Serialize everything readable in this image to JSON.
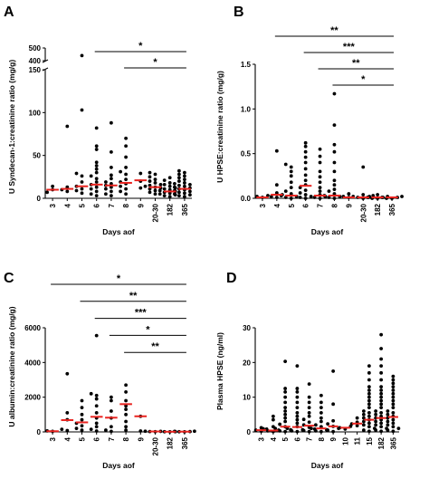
{
  "chart_data": [
    {
      "type": "scatter",
      "panel_label": "A",
      "xlabel": "Days aof",
      "ylabel": "U Syndecan-1:creatinine ratio (mg/g)",
      "categories": [
        "3",
        "4",
        "5",
        "6",
        "7",
        "8",
        "9",
        "20-30",
        "182",
        "365"
      ],
      "y_axis_broken": true,
      "ylim_lower": [
        0,
        150
      ],
      "ylim_upper": [
        400,
        500
      ],
      "yticks": [
        0,
        50,
        100,
        150,
        400,
        500
      ],
      "median_color": "#e8231f",
      "point_color": "#000000",
      "points": [
        [
          10,
          14,
          7
        ],
        [
          8,
          10,
          13,
          84
        ],
        [
          6,
          9,
          11,
          14,
          19,
          26,
          29,
          103,
          440
        ],
        [
          3,
          5,
          8,
          11,
          13,
          16,
          19,
          23,
          26,
          30,
          34,
          38,
          42,
          57,
          61,
          82
        ],
        [
          3,
          5,
          8,
          11,
          13,
          15,
          17,
          19,
          23,
          27,
          36,
          54,
          88
        ],
        [
          5,
          8,
          11,
          14,
          17,
          19,
          22,
          28,
          31,
          36,
          48,
          61,
          70
        ],
        [
          12,
          20,
          29
        ],
        [
          5,
          7,
          9,
          11,
          12,
          13,
          14,
          15,
          16,
          18,
          20,
          22,
          25,
          28,
          30
        ],
        [
          2,
          3,
          4,
          5,
          6,
          7,
          8,
          9,
          10,
          11,
          12,
          14,
          16,
          18,
          21,
          24
        ],
        [
          2,
          3,
          4,
          5,
          6,
          7,
          8,
          9,
          10,
          11,
          12,
          13,
          14,
          15,
          16,
          17,
          18,
          20,
          22,
          24,
          26,
          28,
          30,
          32
        ]
      ],
      "medians": [
        10,
        11,
        14,
        16,
        15,
        18,
        21,
        13,
        8,
        11
      ],
      "significance": [
        {
          "label": "*",
          "from": "6",
          "to": "365"
        },
        {
          "label": "*",
          "from": "8",
          "to": "365"
        }
      ]
    },
    {
      "type": "scatter",
      "panel_label": "B",
      "xlabel": "Days aof",
      "ylabel": "U HPSE:creatinine ratio (mg/g)",
      "categories": [
        "3",
        "4",
        "5",
        "6",
        "7",
        "8",
        "9",
        "20-30",
        "182",
        "365"
      ],
      "ylim": [
        0,
        1.5
      ],
      "yticks": [
        0.0,
        0.5,
        1.0,
        1.5
      ],
      "median_color": "#e8231f",
      "point_color": "#000000",
      "points": [
        [
          0.01,
          0.02,
          0.03
        ],
        [
          0.01,
          0.02,
          0.04,
          0.06,
          0.15,
          0.53
        ],
        [
          0.0,
          0.01,
          0.02,
          0.03,
          0.05,
          0.08,
          0.12,
          0.18,
          0.25,
          0.3,
          0.35,
          0.38
        ],
        [
          0.0,
          0.01,
          0.02,
          0.04,
          0.06,
          0.09,
          0.12,
          0.15,
          0.2,
          0.26,
          0.33,
          0.4,
          0.46,
          0.52,
          0.58,
          0.62
        ],
        [
          0.0,
          0.01,
          0.02,
          0.04,
          0.08,
          0.12,
          0.18,
          0.24,
          0.3,
          0.4,
          0.47,
          0.55
        ],
        [
          0.0,
          0.01,
          0.02,
          0.03,
          0.05,
          0.08,
          0.1,
          0.15,
          0.2,
          0.3,
          0.4,
          0.52,
          0.6,
          0.82,
          1.17
        ],
        [
          0.01,
          0.02,
          0.05
        ],
        [
          0.0,
          0.01,
          0.01,
          0.02,
          0.03,
          0.04,
          0.35
        ],
        [
          0.0,
          0.0,
          0.01,
          0.01,
          0.02,
          0.02,
          0.04
        ],
        [
          0.0,
          0.0,
          0.01,
          0.01,
          0.02
        ]
      ],
      "medians": [
        0.01,
        0.04,
        0.03,
        0.14,
        0.03,
        0.03,
        0.01,
        0.01,
        0.01,
        0.01
      ],
      "significance": [
        {
          "label": "**",
          "from": "4",
          "to": "365"
        },
        {
          "label": "***",
          "from": "6",
          "to": "365"
        },
        {
          "label": "**",
          "from": "7",
          "to": "365"
        },
        {
          "label": "*",
          "from": "8",
          "to": "365"
        }
      ]
    },
    {
      "type": "scatter",
      "panel_label": "C",
      "xlabel": "Days aof",
      "ylabel": "U albumin:creatinine ratio (mg/g)",
      "categories": [
        "3",
        "4",
        "5",
        "6",
        "7",
        "8",
        "9",
        "20-30",
        "182",
        "365"
      ],
      "ylim": [
        0,
        6000
      ],
      "yticks": [
        0,
        2000,
        4000,
        6000
      ],
      "median_color": "#e8231f",
      "point_color": "#000000",
      "points": [
        [
          30,
          60
        ],
        [
          80,
          150,
          700,
          1100,
          3350
        ],
        [
          100,
          200,
          350,
          500,
          700,
          1000,
          1400,
          1800
        ],
        [
          50,
          150,
          300,
          500,
          800,
          1100,
          1500,
          1900,
          2100,
          2200,
          5550
        ],
        [
          30,
          100,
          300,
          800,
          1200,
          1800,
          2000
        ],
        [
          100,
          300,
          600,
          1000,
          1300,
          1500,
          1800,
          2300,
          2700
        ],
        [
          50,
          900
        ],
        [
          10,
          20,
          30,
          40
        ],
        [
          5,
          10,
          15
        ],
        [
          5,
          10,
          20,
          30,
          40
        ]
      ],
      "medians": [
        40,
        680,
        550,
        870,
        820,
        1600,
        900,
        25,
        10,
        15
      ],
      "significance": [
        {
          "label": "*",
          "from": "3",
          "to": "365"
        },
        {
          "label": "**",
          "from": "5",
          "to": "365"
        },
        {
          "label": "***",
          "from": "6",
          "to": "365"
        },
        {
          "label": "*",
          "from": "7",
          "to": "365"
        },
        {
          "label": "**",
          "from": "8",
          "to": "365"
        }
      ]
    },
    {
      "type": "scatter",
      "panel_label": "D",
      "xlabel": "Days aof",
      "ylabel": "Plasma HPSE (ng/ml)",
      "categories": [
        "3",
        "4",
        "5",
        "6",
        "7",
        "8",
        "9",
        "10",
        "11",
        "15",
        "182",
        "365"
      ],
      "ylim": [
        0,
        30
      ],
      "yticks": [
        0,
        10,
        20,
        30
      ],
      "median_color": "#e8231f",
      "point_color": "#000000",
      "points": [
        [
          0.2,
          0.5,
          0.8,
          1.2
        ],
        [
          0.1,
          0.3,
          0.5,
          0.9,
          1.5,
          3.5,
          4.5
        ],
        [
          0.1,
          0.3,
          0.6,
          1.0,
          1.5,
          2.2,
          3.0,
          4.0,
          5.0,
          6.0,
          7.0,
          8.5,
          10.0,
          11.5,
          12.5,
          20.3
        ],
        [
          0.1,
          0.3,
          0.6,
          1.0,
          1.5,
          2.5,
          3.5,
          4.5,
          5.5,
          7.0,
          8.5,
          10.0,
          11.5,
          12.5,
          19.0
        ],
        [
          0.1,
          0.4,
          0.8,
          1.3,
          2.0,
          2.8,
          3.6,
          4.5,
          5.5,
          7.0,
          8.5,
          10.0,
          13.8
        ],
        [
          0.1,
          0.3,
          0.6,
          1.0,
          1.5,
          2.0,
          3.0,
          4.0,
          5.5,
          7.0,
          8.5,
          10.5
        ],
        [
          0.1,
          0.5,
          1.0,
          1.6,
          2.3,
          3.2,
          8.0,
          17.5
        ],
        [
          0.8,
          1.2,
          1.6
        ],
        [
          1.8,
          2.3,
          2.8,
          4.0
        ],
        [
          0.2,
          0.5,
          1.0,
          1.5,
          2.0,
          2.5,
          3.0,
          3.5,
          4.0,
          4.5,
          5.0,
          5.5,
          6.0,
          7.0,
          8.0,
          9.0,
          10.0,
          11.0,
          12.0,
          13.0,
          15.0,
          17.0,
          19.0
        ],
        [
          0.2,
          0.5,
          1.0,
          1.5,
          2.0,
          2.5,
          3.0,
          3.5,
          4.0,
          4.5,
          5.0,
          5.5,
          6.0,
          7.0,
          8.0,
          9.0,
          10.0,
          11.0,
          12.0,
          13.0,
          15.0,
          17.0,
          19.0,
          21.0,
          24.0,
          28.0
        ],
        [
          0.2,
          0.5,
          1.0,
          1.5,
          2.0,
          2.5,
          3.0,
          3.5,
          4.0,
          4.5,
          5.0,
          5.5,
          6.0,
          7.0,
          8.0,
          9.0,
          10.0,
          11.0,
          12.0,
          13.0,
          14.0,
          15.0,
          16.0
        ]
      ],
      "medians": [
        0.5,
        0.4,
        1.5,
        1.4,
        1.8,
        1.0,
        1.6,
        1.2,
        2.4,
        3.5,
        4.0,
        4.3
      ],
      "significance": []
    }
  ]
}
